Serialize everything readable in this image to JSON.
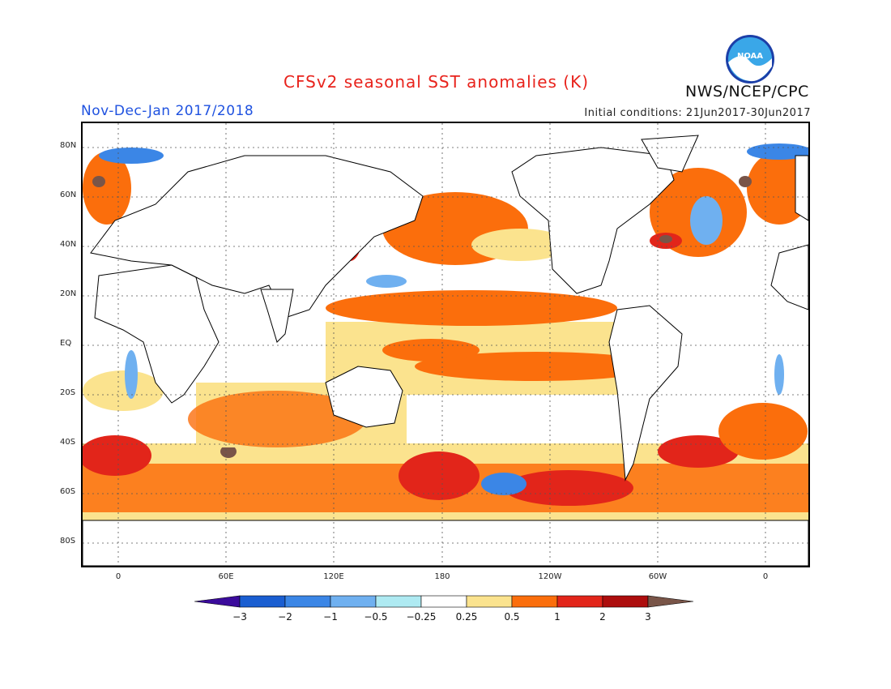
{
  "title": "CFSv2 seasonal SST anomalies (K)",
  "season_label": "Nov-Dec-Jan 2017/2018",
  "initial_conditions": "Initial conditions: 21Jun2017-30Jun2017",
  "organization": "NWS/NCEP/CPC",
  "logo_text": "NOAA",
  "map": {
    "latitude_labels": [
      "80N",
      "60N",
      "40N",
      "20N",
      "EQ",
      "20S",
      "40S",
      "60S",
      "80S"
    ],
    "longitude_labels": [
      "0",
      "60E",
      "120E",
      "180",
      "120W",
      "60W",
      "0"
    ],
    "colorbar": {
      "ticks": [
        "−3",
        "−2",
        "−1",
        "−0.5",
        "−0.25",
        "0.25",
        "0.5",
        "1",
        "2",
        "3"
      ],
      "colors": [
        "#3b0b9c",
        "#1a5ed1",
        "#3b86e6",
        "#6fb0f0",
        "#aeeaf2",
        "#ffffff",
        "#fbe38e",
        "#fb6e0c",
        "#e2251a",
        "#ad0d0d",
        "#795548"
      ]
    }
  }
}
